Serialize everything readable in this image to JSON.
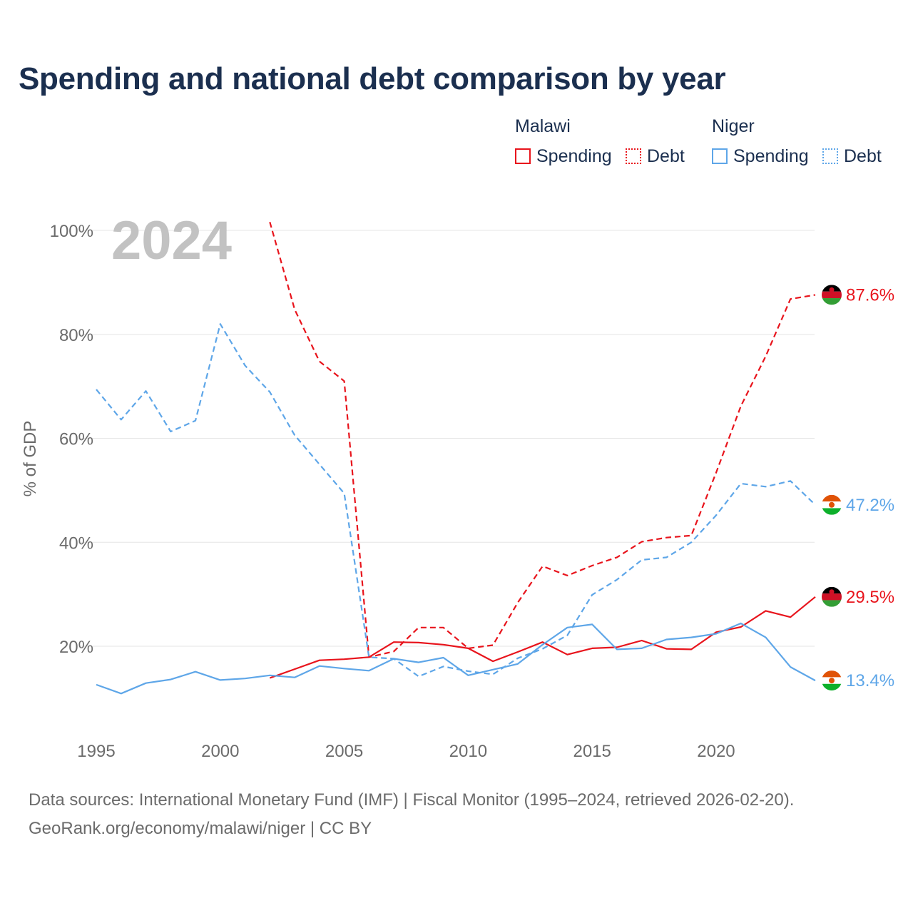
{
  "title": "Spending and national debt comparison by year",
  "legend": {
    "groups": [
      {
        "country": "Malawi",
        "items": [
          {
            "label": "Spending",
            "style": "solid"
          },
          {
            "label": "Debt",
            "style": "dotted"
          }
        ],
        "color": "#e8141c"
      },
      {
        "country": "Niger",
        "items": [
          {
            "label": "Spending",
            "style": "solid"
          },
          {
            "label": "Debt",
            "style": "dotted"
          }
        ],
        "color": "#5ea6e8"
      }
    ]
  },
  "footer": {
    "line1": "Data sources: International Monetary Fund (IMF) | Fiscal Monitor (1995–2024, retrieved 2026-02-20).",
    "line2": "GeoRank.org/economy/malawi/niger | CC BY"
  },
  "colors": {
    "malawi": "#e8141c",
    "niger": "#5ea6e8",
    "grid": "#e6e6e6",
    "year_watermark": "#c2c2c2",
    "tick_label": "#6b6b6b"
  },
  "chart_data": {
    "type": "line",
    "title": "Spending and national debt comparison by year",
    "year_label": "2024",
    "ylabel": "% of GDP",
    "xlabel": "",
    "xlim": [
      1995,
      2024
    ],
    "ylim": [
      6,
      102
    ],
    "x_ticks": [
      1995,
      2000,
      2005,
      2010,
      2015,
      2020
    ],
    "y_ticks": [
      20,
      40,
      60,
      80,
      100
    ],
    "y_tick_labels": [
      "20%",
      "40%",
      "60%",
      "80%",
      "100%"
    ],
    "grid": true,
    "legend_position": "top-right",
    "series": [
      {
        "name": "Malawi Spending",
        "country": "Malawi",
        "metric": "Spending",
        "dash": "solid",
        "color": "#e8141c",
        "x": [
          2002,
          2003,
          2004,
          2005,
          2006,
          2007,
          2008,
          2009,
          2010,
          2011,
          2012,
          2013,
          2014,
          2015,
          2016,
          2017,
          2018,
          2019,
          2020,
          2021,
          2022,
          2023,
          2024
        ],
        "values": [
          13.9,
          15.6,
          17.3,
          17.5,
          17.9,
          20.8,
          20.7,
          20.3,
          19.6,
          17.1,
          18.9,
          20.8,
          18.4,
          19.6,
          19.8,
          21.1,
          19.5,
          19.4,
          22.7,
          23.7,
          26.8,
          25.6,
          29.5
        ],
        "end_label": "29.5%"
      },
      {
        "name": "Malawi Debt",
        "country": "Malawi",
        "metric": "Debt",
        "dash": "dashed",
        "color": "#e8141c",
        "x": [
          2002,
          2003,
          2004,
          2005,
          2006,
          2007,
          2008,
          2009,
          2010,
          2011,
          2012,
          2013,
          2014,
          2015,
          2016,
          2017,
          2018,
          2019,
          2020,
          2021,
          2022,
          2023,
          2024
        ],
        "values": [
          101.6,
          84.8,
          74.8,
          71.0,
          17.9,
          19.0,
          23.6,
          23.6,
          19.6,
          20.2,
          28.4,
          35.4,
          33.6,
          35.5,
          37.1,
          40.1,
          40.9,
          41.3,
          53.4,
          66.2,
          75.8,
          86.8,
          87.6
        ],
        "end_label": "87.6%"
      },
      {
        "name": "Niger Spending",
        "country": "Niger",
        "metric": "Spending",
        "dash": "solid",
        "color": "#5ea6e8",
        "x": [
          1995,
          1996,
          1997,
          1998,
          1999,
          2000,
          2001,
          2002,
          2003,
          2004,
          2005,
          2006,
          2007,
          2008,
          2009,
          2010,
          2011,
          2012,
          2013,
          2014,
          2015,
          2016,
          2017,
          2018,
          2019,
          2020,
          2021,
          2022,
          2023,
          2024
        ],
        "values": [
          12.6,
          10.9,
          12.9,
          13.6,
          15.1,
          13.5,
          13.8,
          14.4,
          14.0,
          16.2,
          15.7,
          15.3,
          17.6,
          16.9,
          17.8,
          14.4,
          15.5,
          16.6,
          20.3,
          23.6,
          24.2,
          19.4,
          19.6,
          21.3,
          21.7,
          22.4,
          24.4,
          21.7,
          16.0,
          13.4
        ],
        "end_label": "13.4%"
      },
      {
        "name": "Niger Debt",
        "country": "Niger",
        "metric": "Debt",
        "dash": "dashed",
        "color": "#5ea6e8",
        "x": [
          1995,
          1996,
          1997,
          1998,
          1999,
          2000,
          2001,
          2002,
          2003,
          2004,
          2005,
          2006,
          2007,
          2008,
          2009,
          2010,
          2011,
          2012,
          2013,
          2014,
          2015,
          2016,
          2017,
          2018,
          2019,
          2020,
          2021,
          2022,
          2023,
          2024
        ],
        "values": [
          69.4,
          63.6,
          69.1,
          61.3,
          63.4,
          82.0,
          74.0,
          68.9,
          60.6,
          55.0,
          49.4,
          17.9,
          17.6,
          14.2,
          16.1,
          15.2,
          14.6,
          17.7,
          19.5,
          22.1,
          29.9,
          32.8,
          36.6,
          37.1,
          40.0,
          45.2,
          51.3,
          50.7,
          51.8,
          47.2
        ],
        "end_label": "47.2%"
      }
    ]
  }
}
